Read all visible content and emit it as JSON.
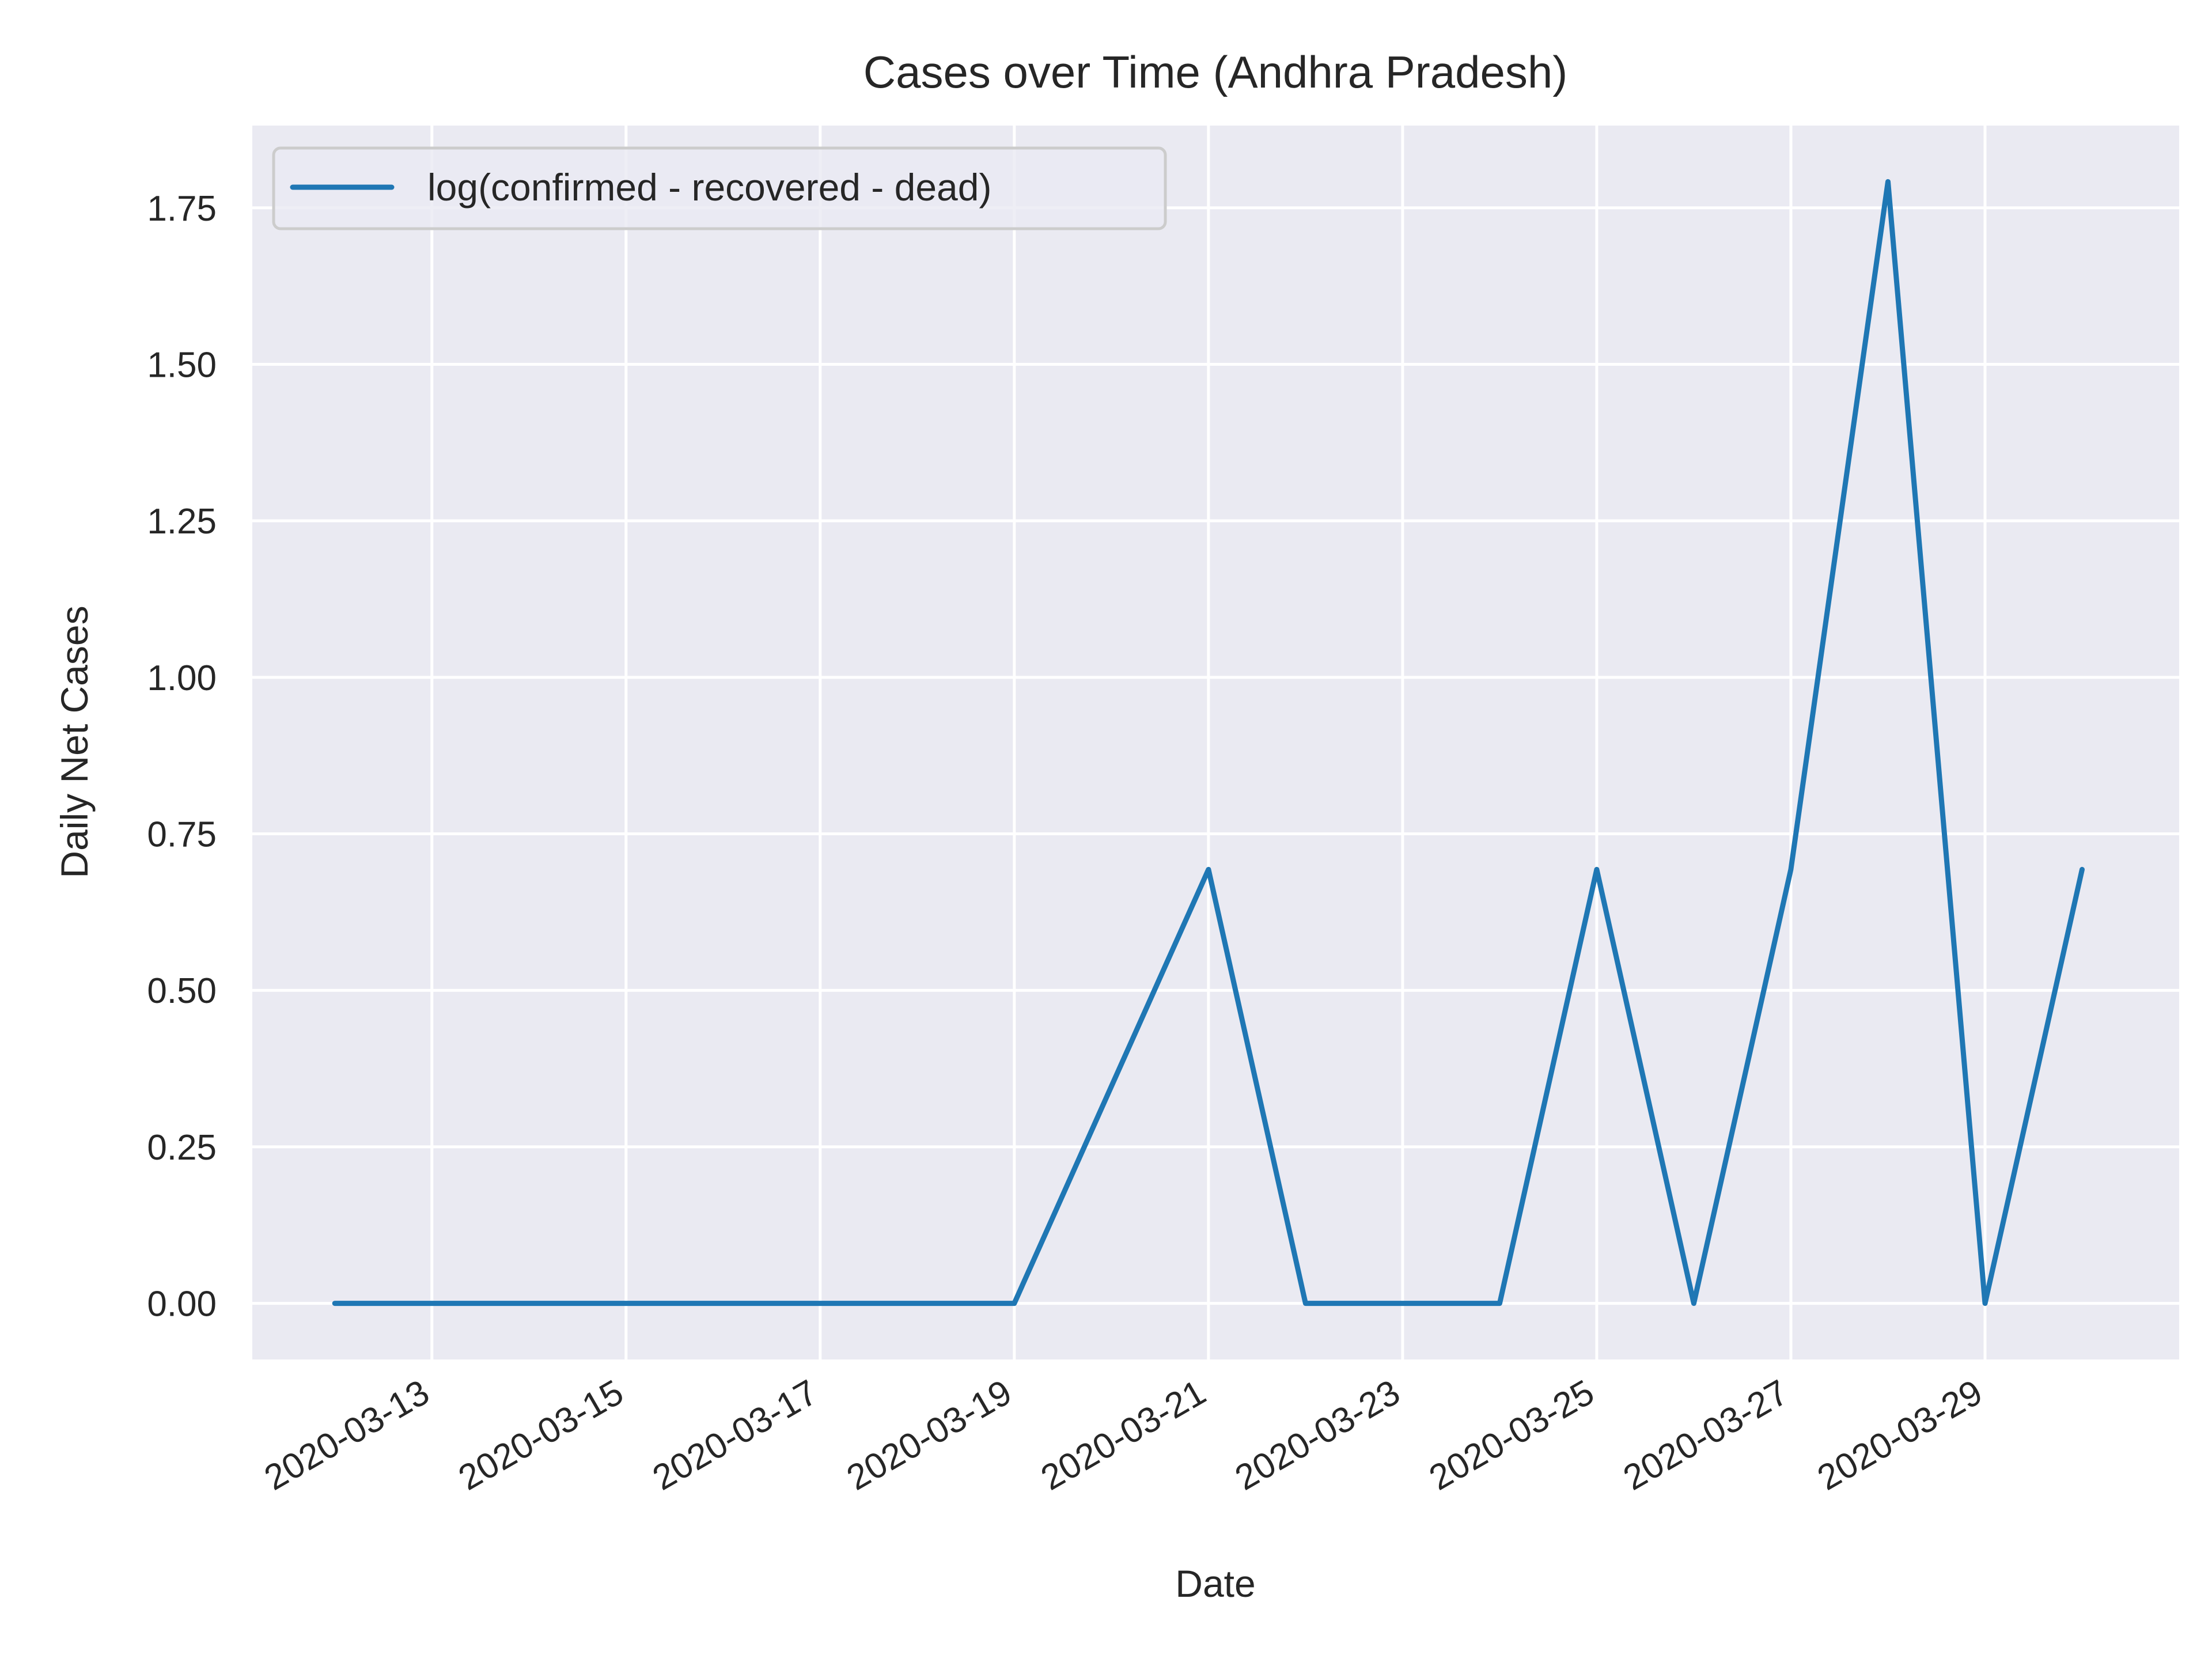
{
  "chart_data": {
    "type": "line",
    "title": "Cases over Time (Andhra Pradesh)",
    "xlabel": "Date",
    "ylabel": "Daily Net Cases",
    "x": [
      "2020-03-12",
      "2020-03-13",
      "2020-03-14",
      "2020-03-15",
      "2020-03-16",
      "2020-03-17",
      "2020-03-18",
      "2020-03-19",
      "2020-03-20",
      "2020-03-21",
      "2020-03-22",
      "2020-03-23",
      "2020-03-24",
      "2020-03-25",
      "2020-03-26",
      "2020-03-27",
      "2020-03-28",
      "2020-03-29",
      "2020-03-30"
    ],
    "series": [
      {
        "name": "log(confirmed - recovered - dead)",
        "values": [
          0,
          0,
          0,
          0,
          0,
          0,
          0,
          0,
          0.3466,
          0.6931,
          0,
          0,
          0,
          0.6931,
          0,
          0.6931,
          1.7918,
          0,
          0.6931
        ]
      }
    ],
    "xticks": [
      "2020-03-13",
      "2020-03-15",
      "2020-03-17",
      "2020-03-19",
      "2020-03-21",
      "2020-03-23",
      "2020-03-25",
      "2020-03-27",
      "2020-03-29"
    ],
    "yticks": [
      0.0,
      0.25,
      0.5,
      0.75,
      1.0,
      1.25,
      1.5,
      1.75
    ],
    "ytick_labels": [
      "0.00",
      "0.25",
      "0.50",
      "0.75",
      "1.00",
      "1.25",
      "1.50",
      "1.75"
    ],
    "xlim": [
      "2020-03-11.15",
      "2020-03-31.00"
    ],
    "ylim": [
      -0.0896,
      1.8814
    ],
    "grid": true,
    "legend_position": "upper-left",
    "colors": {
      "line": "#1f77b4",
      "plot_background": "#eaeaf2",
      "grid": "#ffffff",
      "text": "#262626"
    }
  }
}
